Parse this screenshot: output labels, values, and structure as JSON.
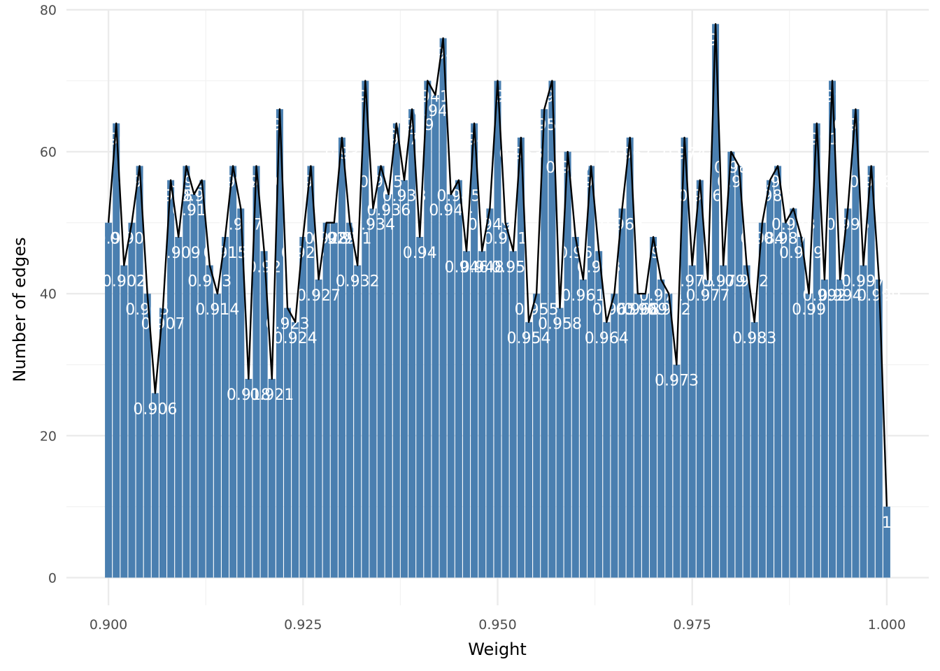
{
  "chart_data": {
    "type": "bar",
    "xlabel": "Weight",
    "ylabel": "Number of edges",
    "xlim": [
      0.8946,
      1.0054
    ],
    "ylim": [
      -3.9,
      80
    ],
    "x_ticks": [
      0.9,
      0.925,
      0.95,
      0.975,
      1.0
    ],
    "x_tick_labels": [
      "0.900",
      "0.925",
      "0.950",
      "0.975",
      "1.000"
    ],
    "y_ticks": [
      0,
      20,
      40,
      60,
      80
    ],
    "y_tick_labels": [
      "0",
      "20",
      "40",
      "60",
      "80"
    ],
    "grid": true,
    "bar_color": "#4a7fb0",
    "line_color": "#000000",
    "series": [
      {
        "x": [
          0.9,
          0.901,
          0.902,
          0.903,
          0.904,
          0.905,
          0.906,
          0.907,
          0.908,
          0.909,
          0.91,
          0.911,
          0.912,
          0.913,
          0.914,
          0.915,
          0.916,
          0.917,
          0.918,
          0.919,
          0.92,
          0.921,
          0.922,
          0.923,
          0.924,
          0.925,
          0.926,
          0.927,
          0.928,
          0.929,
          0.93,
          0.931,
          0.932,
          0.933,
          0.934,
          0.935,
          0.936,
          0.937,
          0.938,
          0.939,
          0.94,
          0.941,
          0.942,
          0.943,
          0.944,
          0.945,
          0.946,
          0.947,
          0.948,
          0.949,
          0.95,
          0.951,
          0.952,
          0.953,
          0.954,
          0.955,
          0.956,
          0.957,
          0.958,
          0.959,
          0.96,
          0.961,
          0.962,
          0.963,
          0.964,
          0.965,
          0.966,
          0.967,
          0.968,
          0.969,
          0.97,
          0.971,
          0.972,
          0.973,
          0.974,
          0.975,
          0.976,
          0.977,
          0.978,
          0.979,
          0.98,
          0.981,
          0.982,
          0.983,
          0.984,
          0.985,
          0.986,
          0.987,
          0.988,
          0.989,
          0.99,
          0.991,
          0.992,
          0.993,
          0.994,
          0.995,
          0.996,
          0.997,
          0.998,
          0.999,
          1.0
        ],
        "values": [
          50,
          64,
          44,
          50,
          58,
          40,
          26,
          38,
          56,
          48,
          58,
          54,
          56,
          44,
          40,
          48,
          58,
          52,
          28,
          58,
          46,
          28,
          66,
          38,
          36,
          48,
          58,
          42,
          50,
          50,
          62,
          50,
          44,
          70,
          52,
          58,
          54,
          64,
          56,
          66,
          48,
          70,
          68,
          76,
          54,
          56,
          46,
          64,
          46,
          52,
          70,
          50,
          46,
          62,
          36,
          40,
          66,
          70,
          38,
          60,
          48,
          42,
          58,
          46,
          36,
          40,
          52,
          62,
          40,
          40,
          48,
          42,
          40,
          30,
          62,
          44,
          56,
          42,
          78,
          44,
          60,
          58,
          44,
          36,
          50,
          56,
          58,
          50,
          52,
          48,
          40,
          64,
          42,
          70,
          42,
          52,
          66,
          44,
          58,
          42,
          10
        ]
      }
    ],
    "bar_labels": [
      "0.9",
      "0.901",
      "0.902",
      "0.903",
      "0.904",
      "0.905",
      "0.906",
      "0.907",
      "0.908",
      "0.909",
      "0.91",
      "0.911",
      "0.912",
      "0.913",
      "0.914",
      "0.915",
      "0.916",
      "0.917",
      "0.918",
      "0.919",
      "0.92",
      "0.921",
      "0.922",
      "0.923",
      "0.924",
      "0.925",
      "0.926",
      "0.927",
      "0.928",
      "0.929",
      "0.93",
      "0.931",
      "0.932",
      "0.933",
      "0.934",
      "0.935",
      "0.936",
      "0.937",
      "0.938",
      "0.939",
      "0.94",
      "0.941",
      "0.942",
      "0.943",
      "0.944",
      "0.945",
      "0.946",
      "0.947",
      "0.948",
      "0.949",
      "0.95",
      "0.951",
      "0.952",
      "0.953",
      "0.954",
      "0.955",
      "0.956",
      "0.957",
      "0.958",
      "0.959",
      "0.96",
      "0.961",
      "0.962",
      "0.963",
      "0.964",
      "0.965",
      "0.966",
      "0.967",
      "0.968",
      "0.969",
      "0.97",
      "0.971",
      "0.972",
      "0.973",
      "0.974",
      "0.975",
      "0.976",
      "0.977",
      "0.978",
      "0.979",
      "0.98",
      "0.981",
      "0.982",
      "0.983",
      "0.984",
      "0.985",
      "0.986",
      "0.987",
      "0.988",
      "0.989",
      "0.99",
      "0.991",
      "0.992",
      "0.993",
      "0.994",
      "0.995",
      "0.996",
      "0.997",
      "0.998",
      "0.999",
      "1"
    ]
  }
}
